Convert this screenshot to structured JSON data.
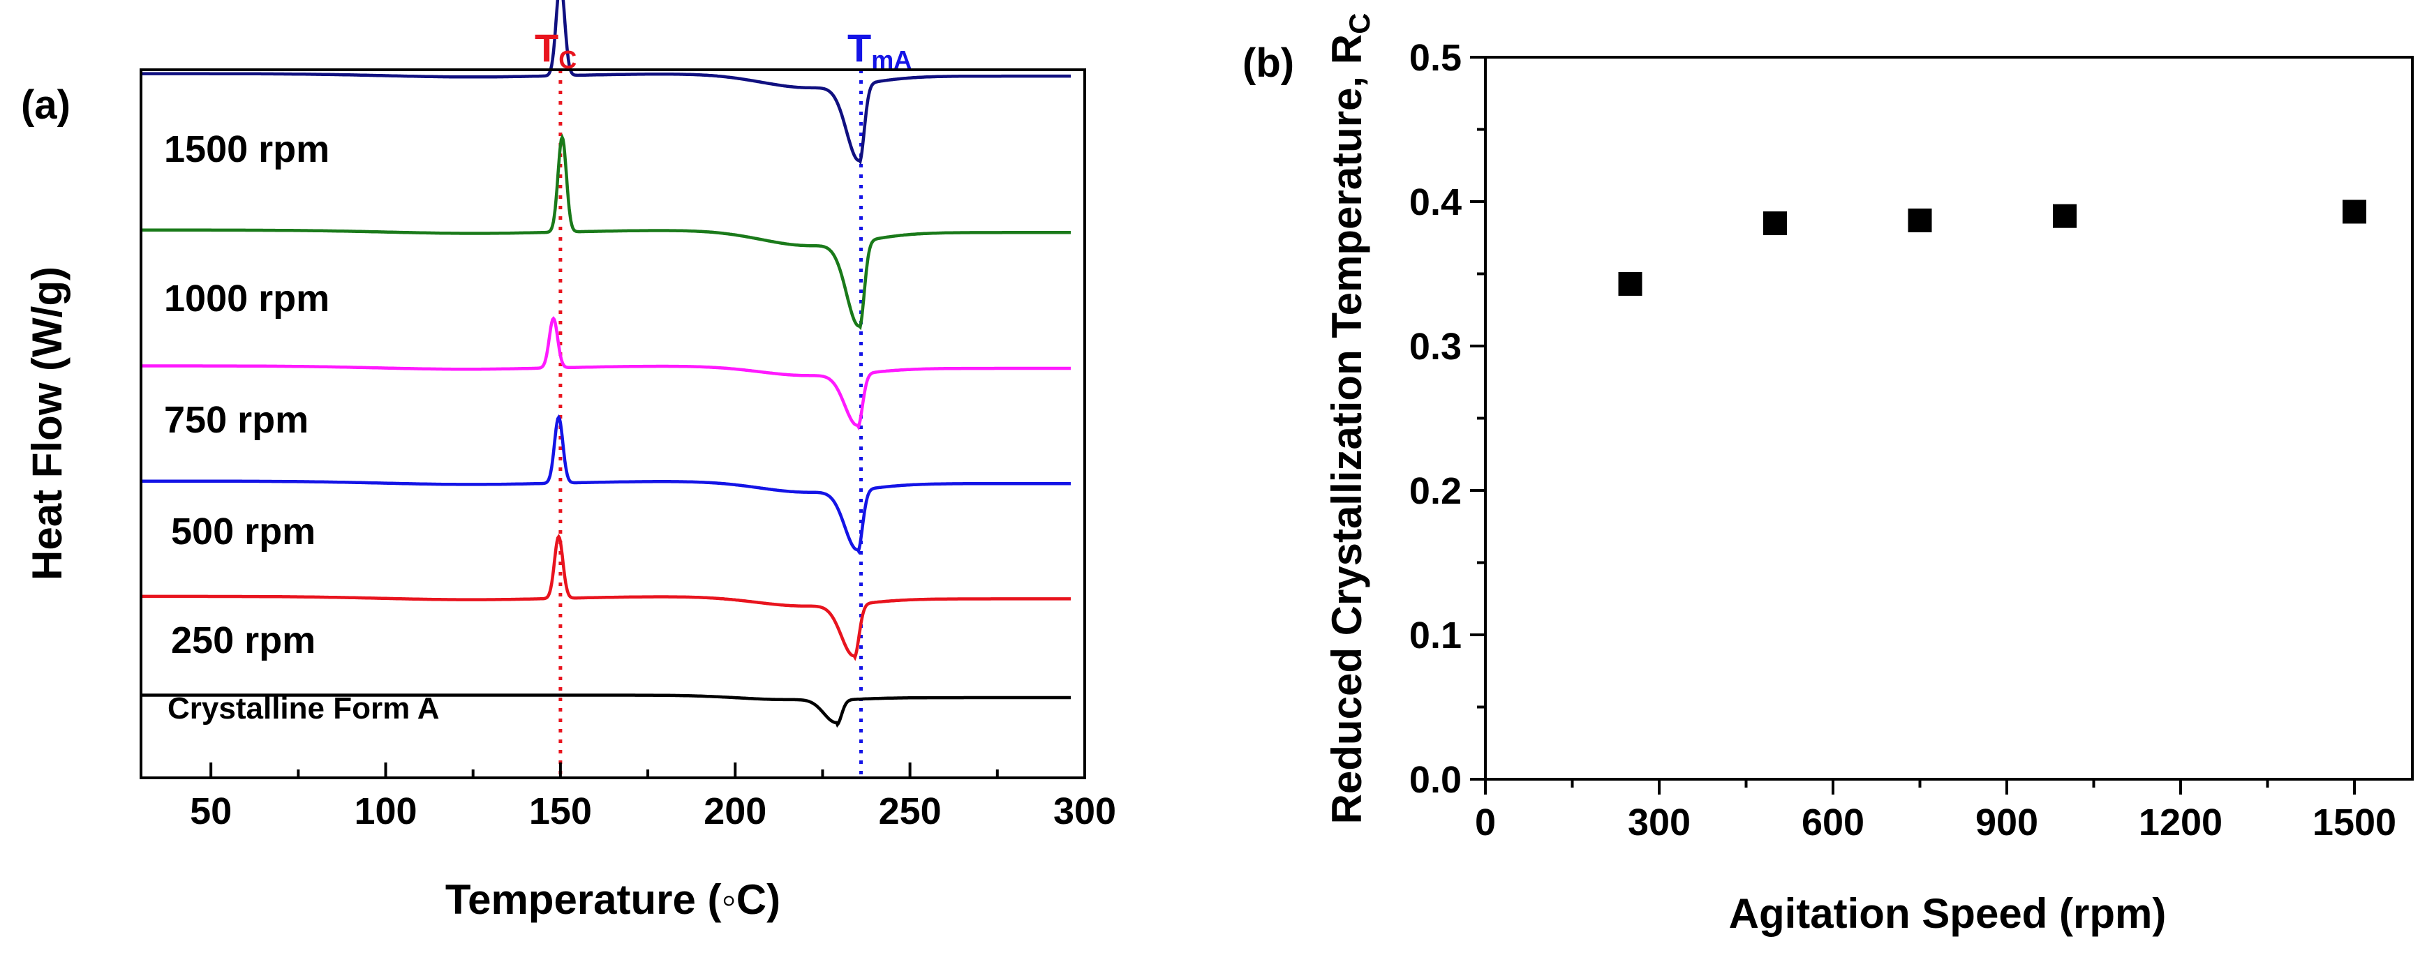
{
  "chart_data": [
    {
      "panel": "(a)",
      "type": "line",
      "xlabel": "Temperature (◦C)",
      "ylabel": "Heat Flow (W/g)",
      "xlim": [
        30,
        300
      ],
      "xticks": [
        50,
        100,
        150,
        200,
        250,
        300
      ],
      "yticks_shown": false,
      "markers": [
        {
          "label": "T",
          "subscript": "C",
          "x": 150,
          "color": "#e8141e",
          "style": "dotted"
        },
        {
          "label": "T",
          "subscript": "mA",
          "x": 236,
          "color": "#1414e6",
          "style": "dotted"
        }
      ],
      "series": [
        {
          "name": "1500 rpm",
          "color": "#101080",
          "baseline": 8.3,
          "exo_peak": {
            "x": 150,
            "height": 1.15
          },
          "endo_peak": {
            "x": 235.5,
            "depth": 0.95
          }
        },
        {
          "name": "1000 rpm",
          "color": "#1a7a1a",
          "baseline": 6.4,
          "exo_peak": {
            "x": 150.5,
            "height": 1.15
          },
          "endo_peak": {
            "x": 235.5,
            "depth": 1.05
          }
        },
        {
          "name": "750 rpm",
          "color": "#ff1aff",
          "baseline": 4.75,
          "exo_peak": {
            "x": 148,
            "height": 0.6
          },
          "endo_peak": {
            "x": 235,
            "depth": 0.65
          }
        },
        {
          "name": "500 rpm",
          "color": "#1414e6",
          "baseline": 3.35,
          "exo_peak": {
            "x": 149.5,
            "height": 0.8
          },
          "endo_peak": {
            "x": 235,
            "depth": 0.75
          }
        },
        {
          "name": "250 rpm",
          "color": "#e8141e",
          "baseline": 1.95,
          "exo_peak": {
            "x": 149.5,
            "height": 0.75
          },
          "endo_peak": {
            "x": 234,
            "depth": 0.65
          }
        },
        {
          "name": "Crystalline Form A",
          "color": "#000000",
          "baseline": 0.75,
          "exo_peak": null,
          "endo_peak": {
            "x": 229,
            "depth": 0.3
          }
        }
      ]
    },
    {
      "panel": "(b)",
      "type": "scatter",
      "xlabel": "Agitation Speed (rpm)",
      "ylabel": "Reduced Crystallization Temperature, R",
      "ylabel_subscript": "C",
      "xlim": [
        0,
        1600
      ],
      "ylim": [
        0.0,
        0.5
      ],
      "xticks": [
        0,
        300,
        600,
        900,
        1200,
        1500
      ],
      "yticks": [
        "0.0",
        "0.1",
        "0.2",
        "0.3",
        "0.4",
        "0.5"
      ],
      "marker": "square",
      "marker_color": "#000000",
      "x": [
        250,
        500,
        750,
        1000,
        1500
      ],
      "y": [
        0.343,
        0.385,
        0.387,
        0.39,
        0.393
      ]
    }
  ]
}
